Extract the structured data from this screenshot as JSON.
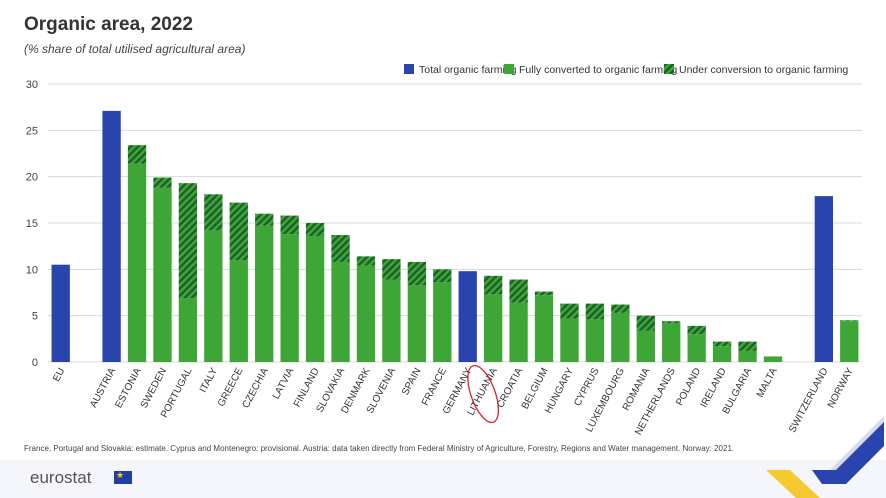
{
  "chart_data": {
    "type": "bar",
    "title": "Organic area, 2022",
    "subtitle": "(% share of total utilised agricultural area)",
    "ylim": [
      0,
      30
    ],
    "yticks": [
      0,
      5,
      10,
      15,
      20,
      25,
      30
    ],
    "legend_position": "top-right",
    "legend": [
      {
        "name": "Total organic farming",
        "color": "#2a44ad",
        "style": "solid"
      },
      {
        "name": "Fully converted to organic farming",
        "color": "#3da637",
        "style": "solid"
      },
      {
        "name": "Under conversion to organic farming",
        "color": "#3da637",
        "style": "hatched"
      }
    ],
    "categories": [
      "EU",
      "AUSTRIA",
      "ESTONIA",
      "SWEDEN",
      "PORTUGAL",
      "ITALY",
      "GREECE",
      "CZECHIA",
      "LATVIA",
      "FINLAND",
      "SLOVAKIA",
      "DENMARK",
      "SLOVENIA",
      "SPAIN",
      "FRANCE",
      "GERMANY",
      "LITHUANIA",
      "CROATIA",
      "BELGIUM",
      "HUNGARY",
      "CYPRUS",
      "LUXEMBOURG",
      "ROMANIA",
      "NETHERLANDS",
      "POLAND",
      "IRELAND",
      "BULGARIA",
      "MALTA",
      "SWITZERLAND",
      "NORWAY"
    ],
    "series": [
      {
        "name": "Total organic farming",
        "values": [
          10.5,
          27.1,
          null,
          null,
          null,
          null,
          null,
          null,
          null,
          null,
          null,
          null,
          null,
          null,
          null,
          9.8,
          null,
          null,
          null,
          null,
          null,
          null,
          null,
          null,
          null,
          null,
          null,
          null,
          17.9,
          null
        ]
      },
      {
        "name": "Fully converted to organic farming",
        "values": [
          null,
          null,
          21.4,
          18.8,
          6.9,
          14.2,
          11.0,
          14.7,
          13.8,
          13.6,
          10.8,
          10.4,
          8.9,
          8.3,
          8.6,
          null,
          7.3,
          6.4,
          7.2,
          4.7,
          4.6,
          5.3,
          3.4,
          4.2,
          3.0,
          1.7,
          1.2,
          0.6,
          null,
          4.4
        ]
      },
      {
        "name": "Under conversion to organic farming",
        "values": [
          null,
          null,
          2.0,
          1.1,
          12.4,
          3.9,
          6.2,
          1.3,
          2.0,
          1.4,
          2.9,
          1.0,
          2.2,
          2.5,
          1.4,
          null,
          2.0,
          2.5,
          0.4,
          1.6,
          1.7,
          0.9,
          1.6,
          0.2,
          0.9,
          0.5,
          1.0,
          0.0,
          null,
          0.1
        ]
      }
    ],
    "footnote": "France, Portugal and Slovakia: estimate. Cyprus and Montenegro: provisional. Austria: data taken directly from Federal Ministry of Agriculture, Forestry, Regions and Water management. Norway: 2021.",
    "highlight": "LITHUANIA"
  },
  "branding": {
    "logo_text": "eurostat"
  },
  "colors": {
    "blue": "#2a44ad",
    "green": "#3da637",
    "green_dark": "#1d5e2a",
    "grid": "#d8d8d8",
    "highlight": "#d4232a"
  }
}
